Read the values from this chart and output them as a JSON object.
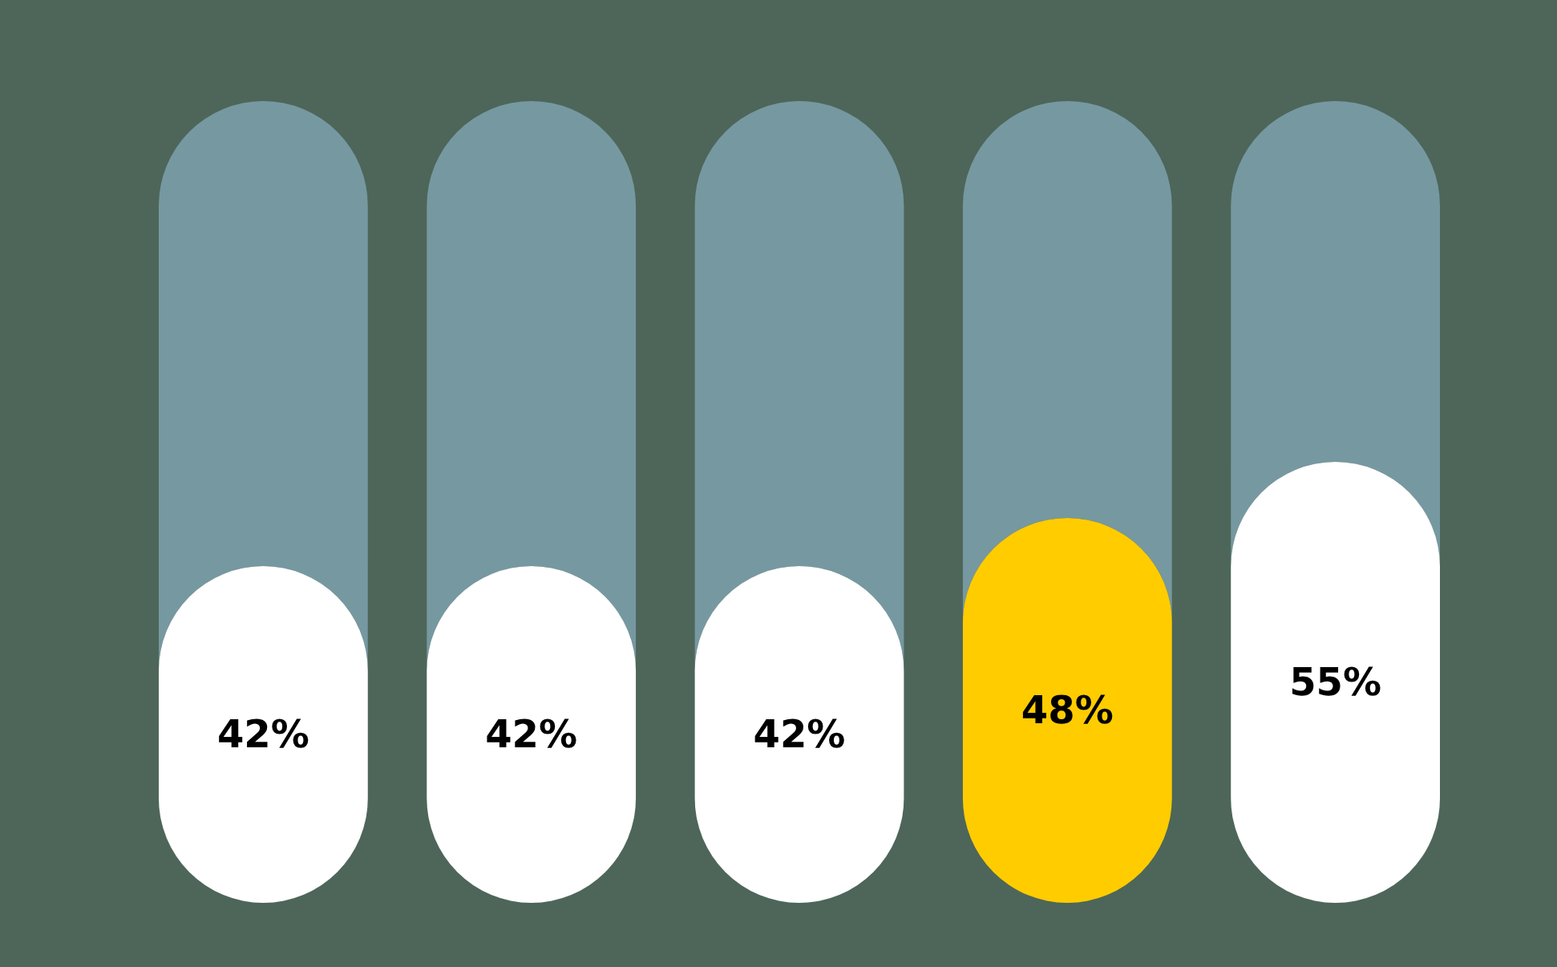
{
  "chart_data": {
    "type": "bar",
    "stacked": true,
    "categories": [
      null,
      null,
      null,
      null,
      null
    ],
    "series": [
      {
        "colors": [
          "#ffffff",
          "#ffffff",
          "#ffffff",
          "#ffcc00",
          "#ffffff"
        ],
        "values": [
          42,
          42,
          42,
          48,
          55
        ],
        "value_labels": [
          "42%",
          "42%",
          "42%",
          "48%",
          "55%"
        ]
      },
      {
        "color": "#7698a1",
        "values": [
          58,
          58,
          58,
          52,
          45
        ]
      }
    ]
  }
}
